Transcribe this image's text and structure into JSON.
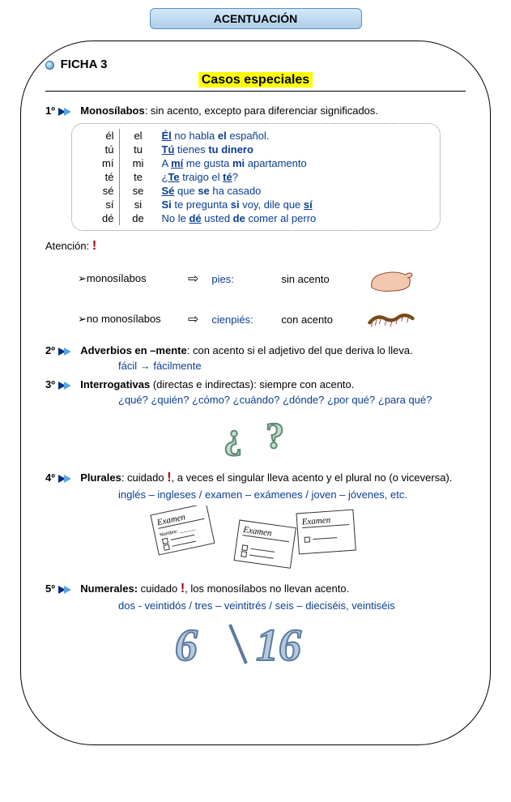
{
  "header": {
    "title": "ACENTUACIÓN"
  },
  "ficha": "FICHA 3",
  "subtitle": "Casos especiales",
  "rule1": {
    "num": "1º",
    "title": "Monosílabos",
    "rest": ": sin acento, excepto para diferenciar significados.",
    "rows": [
      {
        "a": "él",
        "b": "el",
        "ex_html": "<u><b>Él</b></u> no habla <b>el</b> español."
      },
      {
        "a": "tú",
        "b": "tu",
        "ex_html": "<u><b>Tú</b></u> tienes <b>tu dinero</b>"
      },
      {
        "a": "mí",
        "b": "mi",
        "ex_html": "A <u><b>mí</b></u> me gusta <b>mi</b> apartamento"
      },
      {
        "a": "té",
        "b": "te",
        "ex_html": "¿<u><b>Te</b></u> traigo el <u><b>té</b></u>?"
      },
      {
        "a": "sé",
        "b": "se",
        "ex_html": "<u><b>Sé</b></u> que <b>se</b> ha casado"
      },
      {
        "a": "sí",
        "b": "si",
        "ex_html": "<b>Si</b> te pregunta <b>si</b> voy, dile que <u><b>sí</b></u>"
      },
      {
        "a": "dé",
        "b": "de",
        "ex_html": "No le <u><b>dé</b></u> usted <b>de</b> comer al perro"
      }
    ]
  },
  "atencion": {
    "label": "Atención:",
    "rows": [
      {
        "kind": "monosílabos",
        "word": "pies:",
        "note": "sin acento"
      },
      {
        "kind": "no monosílabos",
        "word": "cienpiés:",
        "note": "con acento"
      }
    ]
  },
  "rule2": {
    "num": "2º",
    "title": "Adverbios en –mente",
    "rest": ": con acento si el adjetivo del que deriva lo lleva.",
    "example": "fácil → fácilmente"
  },
  "rule3": {
    "num": "3º",
    "title": "Interrogativas",
    "rest": " (directas e indirectas): siempre con acento.",
    "example": "¿qué? ¿quién? ¿cómo?  ¿cuándo? ¿dónde? ¿por qué? ¿para qué?"
  },
  "rule4": {
    "num": "4º",
    "title": "Plurales",
    "rest": ": cuidado",
    "rest2": ", a  veces el singular lleva acento y el plural no (o viceversa).",
    "example": "inglés – ingleses / examen – exámenes  / joven – jóvenes, etc."
  },
  "rule5": {
    "num": "5º",
    "title": "Numerales:",
    "rest": " cuidado",
    "rest2": ", los monosílabos no llevan acento.",
    "example": "dos - veintidós /  tres – veintitrés / seis – dieciséis, veintiséis"
  },
  "colors": {
    "blue": "#0b3d91",
    "highlight": "#ffff00",
    "red": "#a00000",
    "num_fill": "#b6c9df",
    "num_stroke": "#5b7aa0",
    "qmark": "#7da98d"
  }
}
